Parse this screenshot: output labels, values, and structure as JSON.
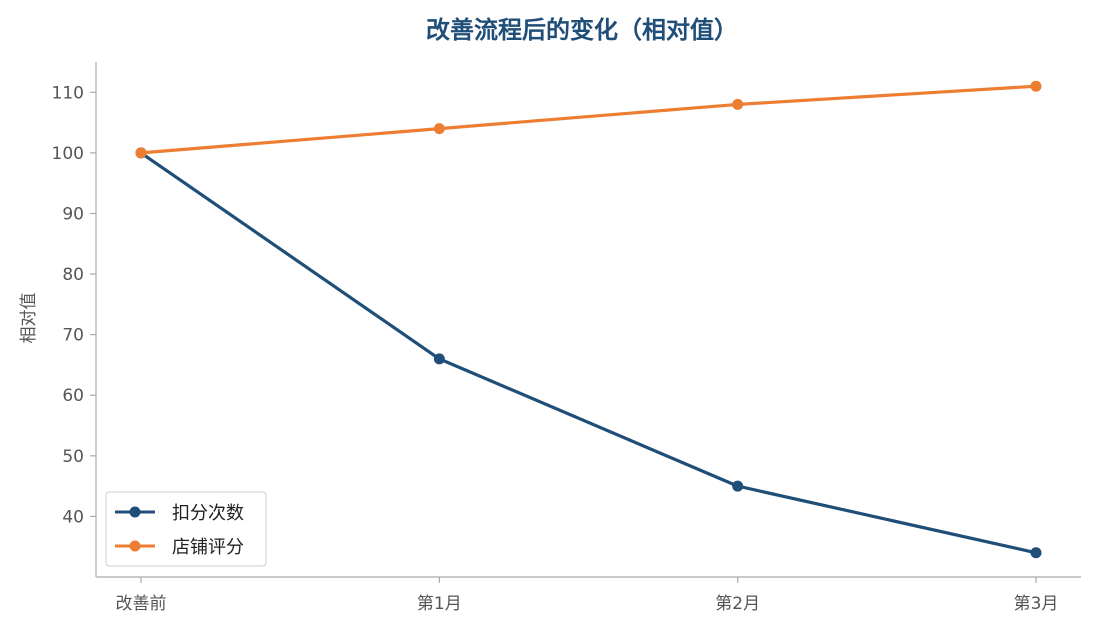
{
  "chart_data": {
    "type": "line",
    "title": "改善流程后的变化（相对值）",
    "xlabel": "",
    "ylabel": "相对值",
    "categories": [
      "改善前",
      "第1月",
      "第2月",
      "第3月"
    ],
    "ylim": [
      30,
      115
    ],
    "yticks": [
      40,
      50,
      60,
      70,
      80,
      90,
      100,
      110
    ],
    "grid": false,
    "legend_position": "lower-left",
    "series": [
      {
        "name": "扣分次数",
        "color": "#1f4e79",
        "values": [
          100,
          66,
          45,
          34
        ]
      },
      {
        "name": "店铺评分",
        "color": "#ed7d31",
        "values": [
          100,
          104,
          108,
          111
        ]
      }
    ]
  }
}
